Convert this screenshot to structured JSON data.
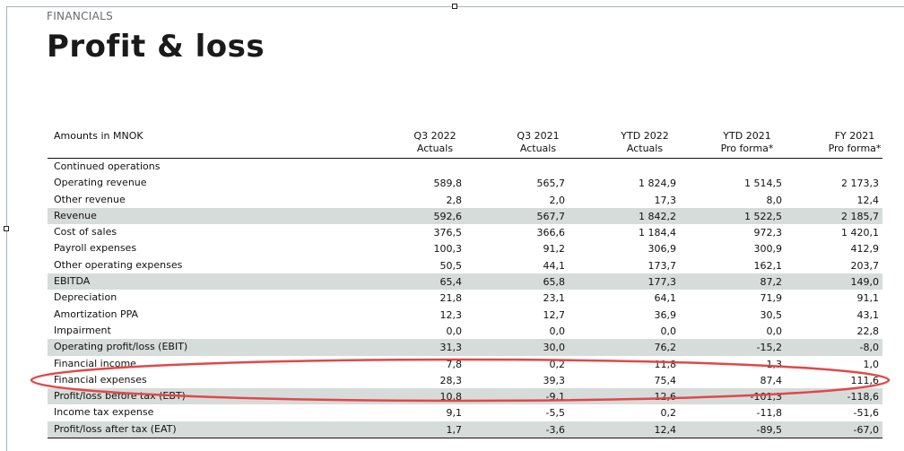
{
  "header": {
    "section": "FINANCIALS",
    "title": "Profit & loss"
  },
  "table": {
    "columns": [
      {
        "line1": "Amounts in MNOK",
        "line2": ""
      },
      {
        "line1": "Q3 2022",
        "line2": "Actuals"
      },
      {
        "line1": "Q3 2021",
        "line2": "Actuals"
      },
      {
        "line1": "YTD 2022",
        "line2": "Actuals"
      },
      {
        "line1": "YTD 2021",
        "line2": "Pro forma*"
      },
      {
        "line1": "FY 2021",
        "line2": "Pro forma*"
      }
    ],
    "rows": [
      {
        "label": "Continued operations",
        "values": [
          "",
          "",
          "",
          "",
          ""
        ],
        "shaded": false
      },
      {
        "label": "Operating revenue",
        "values": [
          "589,8",
          "565,7",
          "1 824,9",
          "1 514,5",
          "2 173,3"
        ],
        "shaded": false
      },
      {
        "label": "Other revenue",
        "values": [
          "2,8",
          "2,0",
          "17,3",
          "8,0",
          "12,4"
        ],
        "shaded": false
      },
      {
        "label": "Revenue",
        "values": [
          "592,6",
          "567,7",
          "1 842,2",
          "1 522,5",
          "2 185,7"
        ],
        "shaded": true
      },
      {
        "label": "Cost of sales",
        "values": [
          "376,5",
          "366,6",
          "1 184,4",
          "972,3",
          "1 420,1"
        ],
        "shaded": false
      },
      {
        "label": "Payroll expenses",
        "values": [
          "100,3",
          "91,2",
          "306,9",
          "300,9",
          "412,9"
        ],
        "shaded": false
      },
      {
        "label": "Other operating expenses",
        "values": [
          "50,5",
          "44,1",
          "173,7",
          "162,1",
          "203,7"
        ],
        "shaded": false
      },
      {
        "label": "EBITDA",
        "values": [
          "65,4",
          "65,8",
          "177,3",
          "87,2",
          "149,0"
        ],
        "shaded": true
      },
      {
        "label": "Depreciation",
        "values": [
          "21,8",
          "23,1",
          "64,1",
          "71,9",
          "91,1"
        ],
        "shaded": false
      },
      {
        "label": "Amortization PPA",
        "values": [
          "12,3",
          "12,7",
          "36,9",
          "30,5",
          "43,1"
        ],
        "shaded": false
      },
      {
        "label": "Impairment",
        "values": [
          "0,0",
          "0,0",
          "0,0",
          "0,0",
          "22,8"
        ],
        "shaded": false
      },
      {
        "label": "Operating profit/loss (EBIT)",
        "values": [
          "31,3",
          "30,0",
          "76,2",
          "-15,2",
          "-8,0"
        ],
        "shaded": true
      },
      {
        "label": "Financial income",
        "values": [
          "7,8",
          "0,2",
          "11,8",
          "1,3",
          "1,0"
        ],
        "shaded": false
      },
      {
        "label": "Financial expenses",
        "values": [
          "28,3",
          "39,3",
          "75,4",
          "87,4",
          "111,6"
        ],
        "shaded": false
      },
      {
        "label": "Profit/loss before tax (EBT)",
        "values": [
          "10,8",
          "-9,1",
          "12,6",
          "-101,3",
          "-118,6"
        ],
        "shaded": true
      },
      {
        "label": "Income tax expense",
        "values": [
          "9,1",
          "-5,5",
          "0,2",
          "-11,8",
          "-51,6"
        ],
        "shaded": false
      },
      {
        "label": "Profit/loss after tax (EAT)",
        "values": [
          "1,7",
          "-3,6",
          "12,4",
          "-89,5",
          "-67,0"
        ],
        "shaded": true
      }
    ]
  },
  "annotation": {
    "stroke_color": "#e04848"
  }
}
